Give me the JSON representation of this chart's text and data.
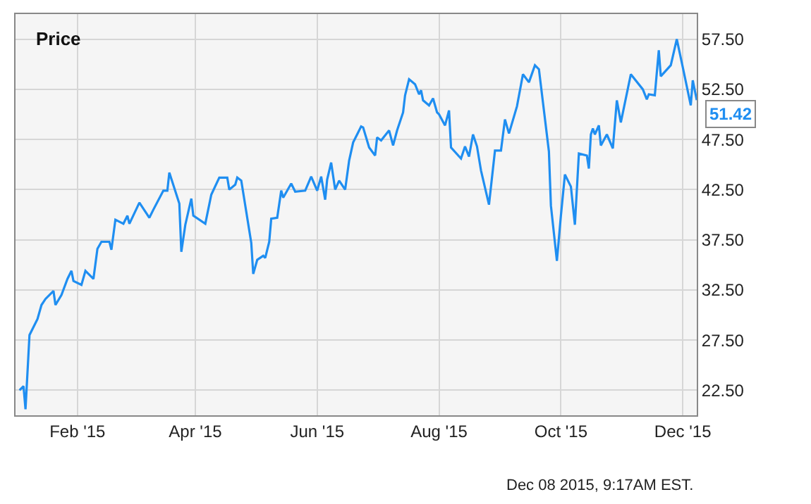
{
  "chart_data": {
    "type": "line",
    "title": "Price",
    "x": [
      "2015-01-03",
      "2015-01-05",
      "2015-01-06",
      "2015-01-08",
      "2015-01-12",
      "2015-01-14",
      "2015-01-16",
      "2015-01-20",
      "2015-01-21",
      "2015-01-24",
      "2015-01-27",
      "2015-01-29",
      "2015-01-30",
      "2015-02-03",
      "2015-02-05",
      "2015-02-09",
      "2015-02-11",
      "2015-02-13",
      "2015-02-17",
      "2015-02-18",
      "2015-02-20",
      "2015-02-24",
      "2015-02-26",
      "2015-02-27",
      "2015-03-04",
      "2015-03-09",
      "2015-03-11",
      "2015-03-16",
      "2015-03-18",
      "2015-03-19",
      "2015-03-24",
      "2015-03-25",
      "2015-03-27",
      "2015-03-30",
      "2015-03-31",
      "2015-04-06",
      "2015-04-09",
      "2015-04-13",
      "2015-04-17",
      "2015-04-18",
      "2015-04-21",
      "2015-04-22",
      "2015-04-24",
      "2015-04-29",
      "2015-04-30",
      "2015-05-02",
      "2015-05-05",
      "2015-05-06",
      "2015-05-08",
      "2015-05-09",
      "2015-05-12",
      "2015-05-14",
      "2015-05-15",
      "2015-05-19",
      "2015-05-21",
      "2015-05-26",
      "2015-05-29",
      "2015-06-01",
      "2015-06-03",
      "2015-06-05",
      "2015-06-06",
      "2015-06-08",
      "2015-06-10",
      "2015-06-12",
      "2015-06-15",
      "2015-06-17",
      "2015-06-19",
      "2015-06-23",
      "2015-06-24",
      "2015-06-27",
      "2015-06-30",
      "2015-07-01",
      "2015-07-03",
      "2015-07-07",
      "2015-07-09",
      "2015-07-11",
      "2015-07-14",
      "2015-07-15",
      "2015-07-17",
      "2015-07-20",
      "2015-07-22",
      "2015-07-23",
      "2015-07-24",
      "2015-07-27",
      "2015-07-29",
      "2015-07-31",
      "2015-08-01",
      "2015-08-04",
      "2015-08-06",
      "2015-08-07",
      "2015-08-12",
      "2015-08-14",
      "2015-08-16",
      "2015-08-18",
      "2015-08-20",
      "2015-08-22",
      "2015-08-26",
      "2015-08-29",
      "2015-09-01",
      "2015-09-03",
      "2015-09-05",
      "2015-09-09",
      "2015-09-12",
      "2015-09-15",
      "2015-09-18",
      "2015-09-20",
      "2015-09-25",
      "2015-09-26",
      "2015-09-29",
      "2015-10-01",
      "2015-10-03",
      "2015-10-06",
      "2015-10-08",
      "2015-10-10",
      "2015-10-14",
      "2015-10-15",
      "2015-10-16",
      "2015-10-17",
      "2015-10-18",
      "2015-10-20",
      "2015-10-21",
      "2015-10-24",
      "2015-10-27",
      "2015-10-29",
      "2015-10-31",
      "2015-11-05",
      "2015-11-11",
      "2015-11-13",
      "2015-11-14",
      "2015-11-17",
      "2015-11-19",
      "2015-11-20",
      "2015-11-25",
      "2015-11-28",
      "2015-12-01",
      "2015-12-05",
      "2015-12-06",
      "2015-12-08"
    ],
    "series": [
      {
        "color": "#1f8ef1",
        "values": [
          22.5,
          22.9,
          20.6,
          28.0,
          29.6,
          31.0,
          31.6,
          32.4,
          31.0,
          32.0,
          33.6,
          34.4,
          33.4,
          33.0,
          34.4,
          33.6,
          36.6,
          37.3,
          37.3,
          36.5,
          39.5,
          39.1,
          39.9,
          39.1,
          41.2,
          39.7,
          40.5,
          42.4,
          42.4,
          44.2,
          41.1,
          36.3,
          39.0,
          41.6,
          39.9,
          39.1,
          42.0,
          43.7,
          43.7,
          42.5,
          43.0,
          43.7,
          43.4,
          37.2,
          34.1,
          35.5,
          35.9,
          35.7,
          37.3,
          39.6,
          39.7,
          42.4,
          41.7,
          43.1,
          42.3,
          42.4,
          43.8,
          42.4,
          43.8,
          41.5,
          43.5,
          45.2,
          42.5,
          43.4,
          42.5,
          45.4,
          47.2,
          48.8,
          48.7,
          46.7,
          45.9,
          47.7,
          47.4,
          48.4,
          46.9,
          48.4,
          50.2,
          51.9,
          53.5,
          53.0,
          52.0,
          52.4,
          51.4,
          50.9,
          51.6,
          50.2,
          50.0,
          48.9,
          50.4,
          46.7,
          45.6,
          46.8,
          45.8,
          48.0,
          46.8,
          44.4,
          41.0,
          46.4,
          46.4,
          49.5,
          48.1,
          50.8,
          54.0,
          53.2,
          54.9,
          54.5,
          46.3,
          40.9,
          35.4,
          39.9,
          44.0,
          42.8,
          39.0,
          46.1,
          45.9,
          44.6,
          48.0,
          48.6,
          48.0,
          48.9,
          46.9,
          48.0,
          46.6,
          51.4,
          49.2,
          54.0,
          52.5,
          51.5,
          52.0,
          51.9,
          56.4,
          53.8,
          54.9,
          57.5,
          54.7,
          50.9,
          53.4,
          51.42
        ]
      }
    ],
    "xlim": [
      "2015-01-01",
      "2015-12-08"
    ],
    "xticks": [
      {
        "value": "2015-02-01",
        "label": "Feb '15"
      },
      {
        "value": "2015-04-01",
        "label": "Apr '15"
      },
      {
        "value": "2015-06-01",
        "label": "Jun '15"
      },
      {
        "value": "2015-08-01",
        "label": "Aug '15"
      },
      {
        "value": "2015-10-01",
        "label": "Oct '15"
      },
      {
        "value": "2015-12-01",
        "label": "Dec '15"
      }
    ],
    "ylim": [
      20,
      60
    ],
    "yticks": [
      {
        "value": 22.5,
        "label": "22.50"
      },
      {
        "value": 27.5,
        "label": "27.50"
      },
      {
        "value": 32.5,
        "label": "32.50"
      },
      {
        "value": 37.5,
        "label": "37.50"
      },
      {
        "value": 42.5,
        "label": "42.50"
      },
      {
        "value": 47.5,
        "label": "47.50"
      },
      {
        "value": 52.5,
        "label": "52.50"
      },
      {
        "value": 57.5,
        "label": "57.50"
      }
    ],
    "grid": true,
    "marker": "none",
    "line_style": "solid",
    "annotations": [
      {
        "text": "51.42",
        "x": "2015-12-08",
        "y": 51.42
      },
      "Dec 08 2015, 9:17AM EST."
    ]
  }
}
